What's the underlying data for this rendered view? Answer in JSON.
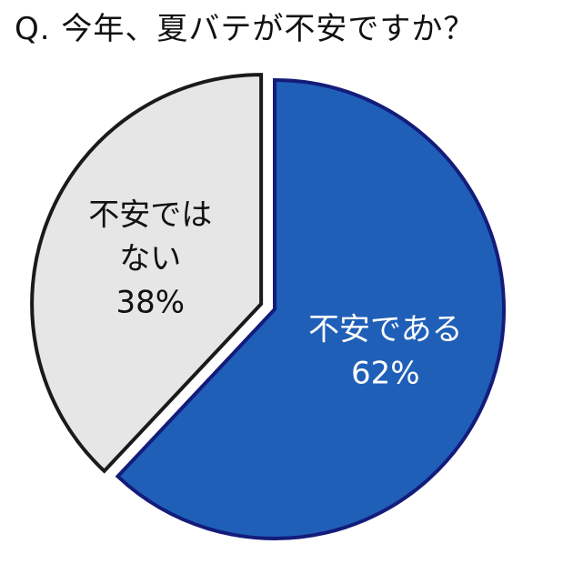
{
  "chart_data": {
    "type": "pie",
    "title": "Q. 今年、夏バテが不安ですか？",
    "slices": [
      {
        "label_lines": [
          "不安である",
          "62%"
        ],
        "value": 62,
        "color": "#1f5fb8",
        "edge_color": "#141c7a",
        "label_color": "#ffffff"
      },
      {
        "label_lines": [
          "不安では",
          "ない",
          "38%"
        ],
        "value": 38,
        "color": "#e6e6e6",
        "edge_color": "#1a1a1a",
        "label_color": "#111111"
      }
    ],
    "start_angle": "12 o'clock",
    "direction": "clockwise",
    "exploded_slice": "不安ではない"
  }
}
